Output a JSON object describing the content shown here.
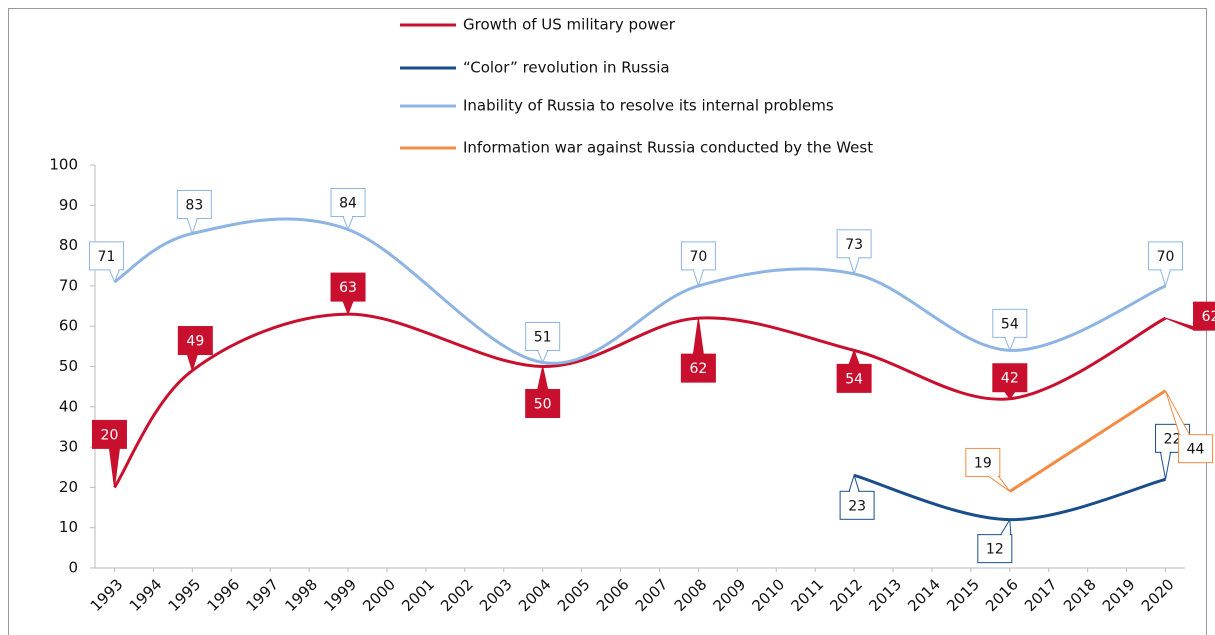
{
  "chart_data": {
    "type": "line",
    "xlim": [
      1992.5,
      2020.5
    ],
    "xticks": [
      1993,
      1994,
      1995,
      1996,
      1997,
      1998,
      1999,
      2000,
      2001,
      2002,
      2003,
      2004,
      2005,
      2006,
      2007,
      2008,
      2009,
      2010,
      2011,
      2012,
      2013,
      2014,
      2015,
      2016,
      2017,
      2018,
      2019,
      2020
    ],
    "ylim": [
      0,
      100
    ],
    "yticks": [
      0,
      10,
      20,
      30,
      40,
      50,
      60,
      70,
      80,
      90,
      100
    ],
    "grid": false,
    "legend": "top",
    "series": [
      {
        "name": "Growth of US military power",
        "color": "#c8102e",
        "x": [
          1993,
          1995,
          1999,
          2004,
          2008,
          2012,
          2016,
          2020
        ],
        "values": [
          20,
          49,
          63,
          50,
          62,
          54,
          42,
          62
        ]
      },
      {
        "name": "“Color” revolution in Russia",
        "color": "#1a4e8a",
        "x": [
          2012,
          2016,
          2020
        ],
        "values": [
          23,
          12,
          22
        ]
      },
      {
        "name": "Inability of Russia to resolve its internal problems",
        "color": "#8eb4e3",
        "x": [
          1993,
          1995,
          1999,
          2004,
          2008,
          2012,
          2016,
          2020
        ],
        "values": [
          71,
          83,
          84,
          51,
          70,
          73,
          54,
          70
        ]
      },
      {
        "name": "Information war against Russia conducted by the West",
        "color": "#f28c45",
        "x": [
          2016,
          2020
        ],
        "values": [
          19,
          44
        ]
      }
    ]
  }
}
